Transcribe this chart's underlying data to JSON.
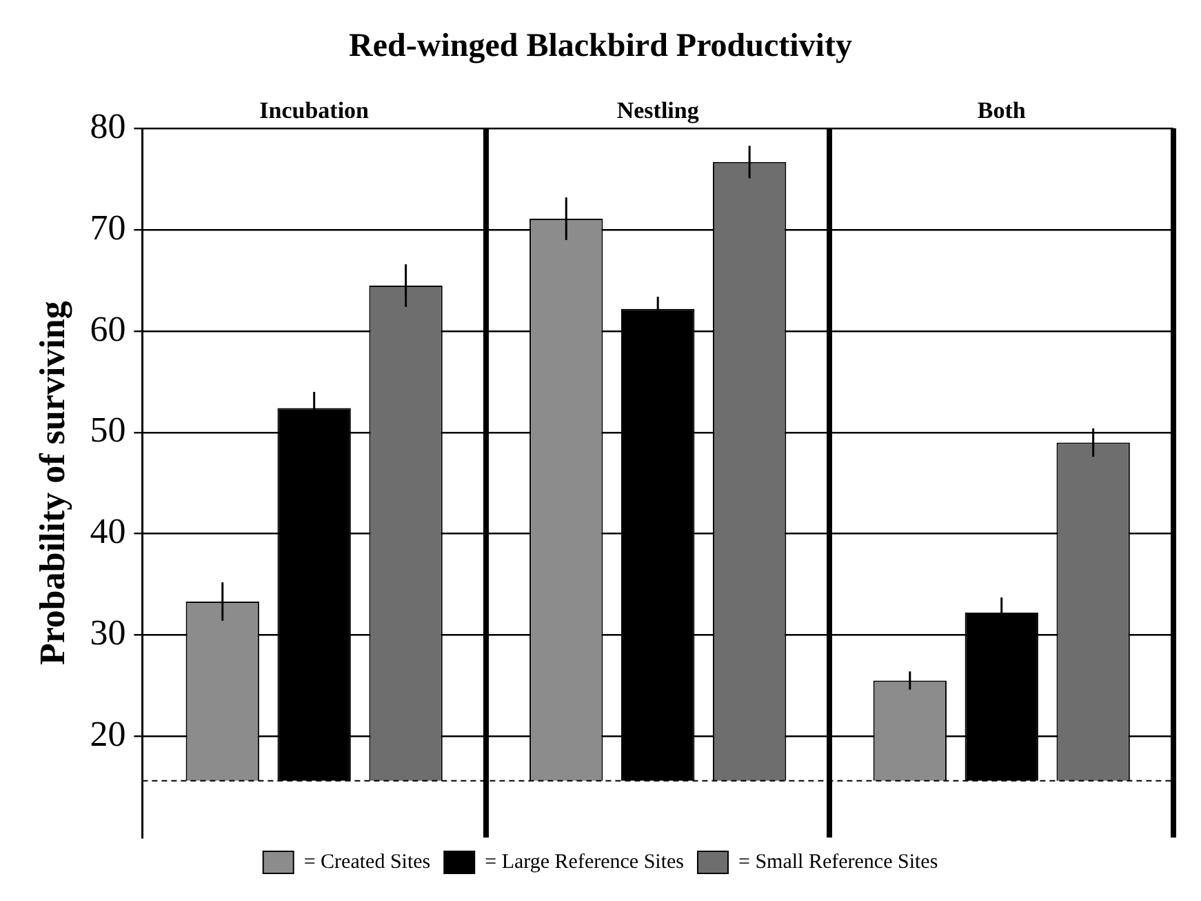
{
  "chart_data": {
    "type": "bar",
    "title": "Red-winged Blackbird Productivity",
    "ylabel": "Probability of surviving",
    "categories": [
      "Incubation",
      "Nestling",
      "Both"
    ],
    "series": [
      {
        "name": "= Created Sites",
        "color": "#8c8c8c",
        "values": [
          17.7,
          55.5,
          9.9
        ],
        "base": [
          15.6,
          15.6,
          15.6
        ],
        "errors": [
          1.9,
          2.1,
          0.9
        ]
      },
      {
        "name": "= Large Reference Sites",
        "color": "#000000",
        "values": [
          36.8,
          46.6,
          16.6
        ],
        "base": [
          15.6,
          15.6,
          15.6
        ],
        "errors": [
          1.6,
          1.2,
          1.5
        ]
      },
      {
        "name": "= Small Reference Sites",
        "color": "#6e6e6e",
        "values": [
          48.9,
          61.1,
          33.4
        ],
        "base": [
          15.6,
          15.6,
          15.6
        ],
        "errors": [
          2.1,
          1.6,
          1.4
        ]
      }
    ],
    "ylim": [
      10,
      80
    ],
    "yticks": [
      20,
      30,
      40,
      50,
      60,
      70,
      80
    ],
    "grid": true,
    "legend": "bottom",
    "ref_lines": [
      {
        "axis": "y",
        "value": 15.6,
        "color": "#000000",
        "line_style": "dashed"
      }
    ]
  }
}
